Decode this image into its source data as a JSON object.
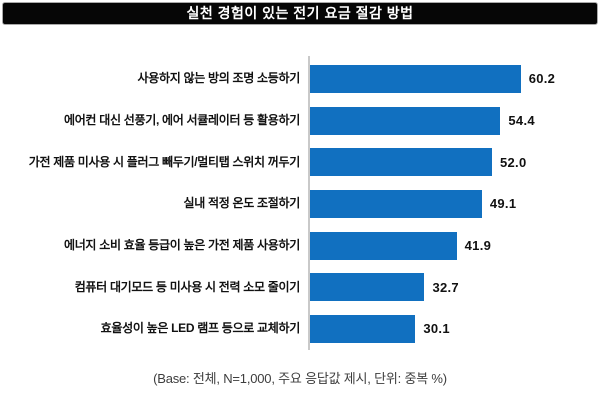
{
  "title": "실천 경험이 있는 전기 요금 절감 방법",
  "footnote": "(Base: 전체, N=1,000, 주요 응답값 제시, 단위: 중복 %)",
  "chart_data": {
    "type": "bar",
    "orientation": "horizontal",
    "title": "실천 경험이 있는 전기 요금 절감 방법",
    "categories": [
      "사용하지 않는 방의 조명 소등하기",
      "에어컨 대신 선풍기, 에어 서큘레이터 등 활용하기",
      "가전 제품 미사용 시 플러그 빼두기/멀티탭 스위치 꺼두기",
      "실내 적정 온도 조절하기",
      "에너지 소비 효율 등급이 높은 가전 제품 사용하기",
      "컴퓨터 대기모드 등 미사용 시 전력 소모 줄이기",
      "효율성이 높은 LED 램프 등으로 교체하기"
    ],
    "values": [
      60.2,
      54.4,
      52.0,
      49.1,
      41.9,
      32.7,
      30.1
    ],
    "value_labels": [
      "60.2",
      "54.4",
      "52.0",
      "49.1",
      "41.9",
      "32.7",
      "30.1"
    ],
    "xlabel": "",
    "ylabel": "",
    "xlim": [
      0,
      65
    ],
    "unit": "중복 %",
    "base_n": "N=1,000",
    "legend": "none",
    "grid": "off",
    "bar_color": "#1170c0",
    "axis_color": "#c9c9c9"
  }
}
